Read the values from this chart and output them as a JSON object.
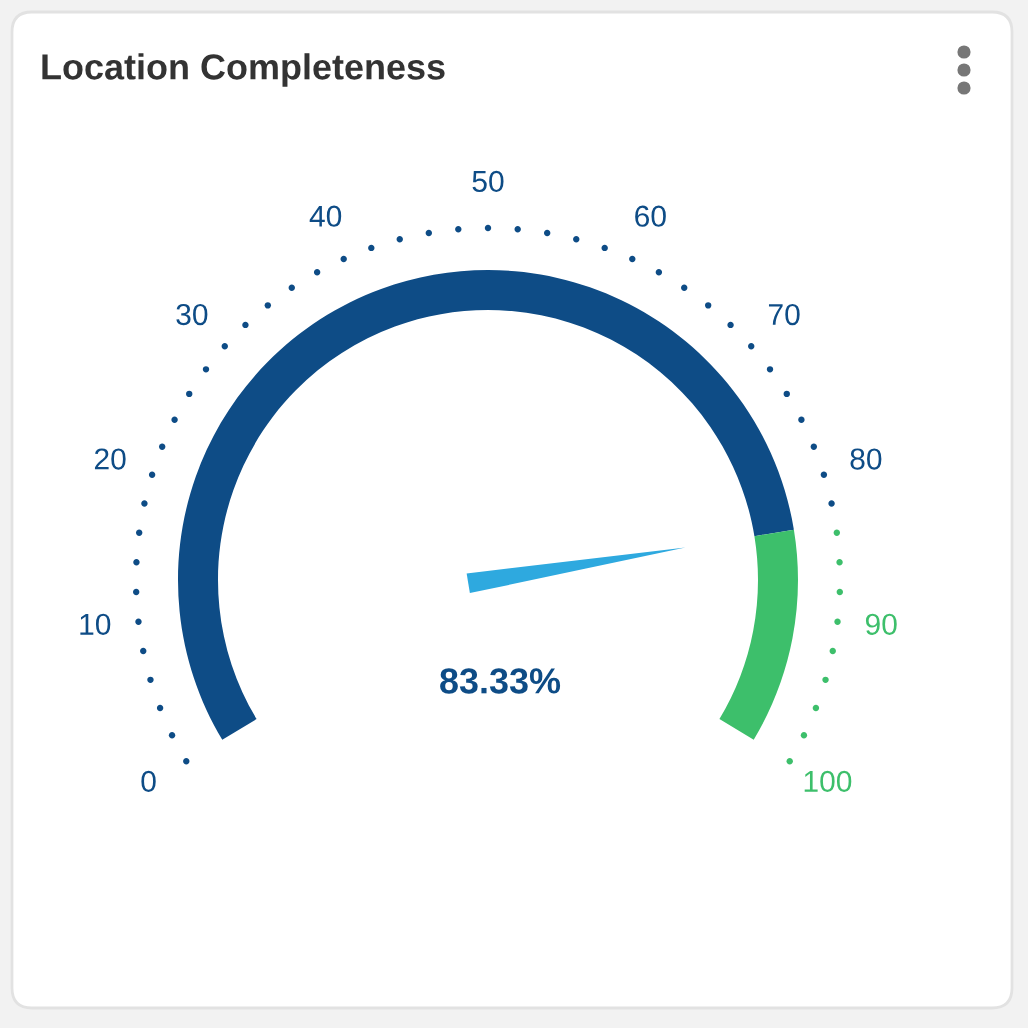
{
  "chart_data": {
    "type": "donut",
    "title": "Location Completeness",
    "categories": [
      null,
      null
    ],
    "values": [
      83.33,
      16.67
    ],
    "colors": [
      "#0e4c86",
      "#3dbf6b"
    ],
    "annotations": [
      "83.33%",
      "0",
      "10",
      "20",
      "30",
      "40",
      "50",
      "60",
      "70",
      "80",
      "90",
      "100"
    ]
  }
}
